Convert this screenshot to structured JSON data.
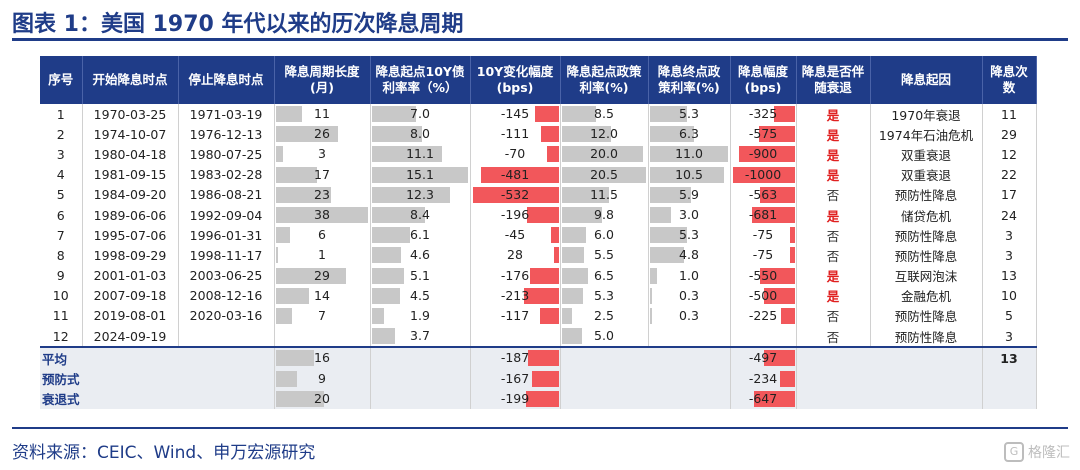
{
  "title": "图表 1：美国 1970 年代以来的历次降息周期",
  "headers": [
    "序号",
    "开始降息时点",
    "停止降息时点",
    "降息周期长度\n(月)",
    "降息起点10Y债\n利率率（%）",
    "10Y变化幅度\n(bps)",
    "降息起点政策\n利率(%)",
    "降息终点政\n策利率(%)",
    "降息幅度\n(bps)",
    "降息是否伴\n随衰退",
    "降息起因",
    "降息次数"
  ],
  "rows": [
    {
      "no": "1",
      "start": "1970-03-25",
      "end": "1971-03-19",
      "len": "11",
      "len_v": 11,
      "y10": "7.0",
      "y10_v": 7.0,
      "chg": "-145",
      "chg_v": 145,
      "ps": "8.5",
      "ps_v": 8.5,
      "pe": "5.3",
      "pe_v": 5.3,
      "cut": "-325",
      "cut_v": 325,
      "rec": "是",
      "recession": true,
      "cause": "1970年衰退",
      "cnt": "11"
    },
    {
      "no": "2",
      "start": "1974-10-07",
      "end": "1976-12-13",
      "len": "26",
      "len_v": 26,
      "y10": "8.0",
      "y10_v": 8.0,
      "chg": "-111",
      "chg_v": 111,
      "ps": "12.0",
      "ps_v": 12.0,
      "pe": "6.3",
      "pe_v": 6.3,
      "cut": "-575",
      "cut_v": 575,
      "rec": "是",
      "recession": true,
      "cause": "1974年石油危机",
      "cnt": "29"
    },
    {
      "no": "3",
      "start": "1980-04-18",
      "end": "1980-07-25",
      "len": "3",
      "len_v": 3,
      "y10": "11.1",
      "y10_v": 11.1,
      "chg": "-70",
      "chg_v": 70,
      "ps": "20.0",
      "ps_v": 20.0,
      "pe": "11.0",
      "pe_v": 11.0,
      "cut": "-900",
      "cut_v": 900,
      "rec": "是",
      "recession": true,
      "cause": "双重衰退",
      "cnt": "12"
    },
    {
      "no": "4",
      "start": "1981-09-15",
      "end": "1983-02-28",
      "len": "17",
      "len_v": 17,
      "y10": "15.1",
      "y10_v": 15.1,
      "chg": "-481",
      "chg_v": 481,
      "ps": "20.5",
      "ps_v": 20.5,
      "pe": "10.5",
      "pe_v": 10.5,
      "cut": "-1000",
      "cut_v": 1000,
      "rec": "是",
      "recession": true,
      "cause": "双重衰退",
      "cnt": "22"
    },
    {
      "no": "5",
      "start": "1984-09-20",
      "end": "1986-08-21",
      "len": "23",
      "len_v": 23,
      "y10": "12.3",
      "y10_v": 12.3,
      "chg": "-532",
      "chg_v": 532,
      "ps": "11.5",
      "ps_v": 11.5,
      "pe": "5.9",
      "pe_v": 5.9,
      "cut": "-563",
      "cut_v": 563,
      "rec": "否",
      "recession": false,
      "cause": "预防性降息",
      "cnt": "17"
    },
    {
      "no": "6",
      "start": "1989-06-06",
      "end": "1992-09-04",
      "len": "38",
      "len_v": 38,
      "y10": "8.4",
      "y10_v": 8.4,
      "chg": "-196",
      "chg_v": 196,
      "ps": "9.8",
      "ps_v": 9.8,
      "pe": "3.0",
      "pe_v": 3.0,
      "cut": "-681",
      "cut_v": 681,
      "rec": "是",
      "recession": true,
      "cause": "储贷危机",
      "cnt": "24"
    },
    {
      "no": "7",
      "start": "1995-07-06",
      "end": "1996-01-31",
      "len": "6",
      "len_v": 6,
      "y10": "6.1",
      "y10_v": 6.1,
      "chg": "-45",
      "chg_v": 45,
      "ps": "6.0",
      "ps_v": 6.0,
      "pe": "5.3",
      "pe_v": 5.3,
      "cut": "-75",
      "cut_v": 75,
      "rec": "否",
      "recession": false,
      "cause": "预防性降息",
      "cnt": "3"
    },
    {
      "no": "8",
      "start": "1998-09-29",
      "end": "1998-11-17",
      "len": "1",
      "len_v": 1,
      "y10": "4.6",
      "y10_v": 4.6,
      "chg": "28",
      "chg_v": 28,
      "ps": "5.5",
      "ps_v": 5.5,
      "pe": "4.8",
      "pe_v": 4.8,
      "cut": "-75",
      "cut_v": 75,
      "rec": "否",
      "recession": false,
      "cause": "预防性降息",
      "cnt": "3"
    },
    {
      "no": "9",
      "start": "2001-01-03",
      "end": "2003-06-25",
      "len": "29",
      "len_v": 29,
      "y10": "5.1",
      "y10_v": 5.1,
      "chg": "-176",
      "chg_v": 176,
      "ps": "6.5",
      "ps_v": 6.5,
      "pe": "1.0",
      "pe_v": 1.0,
      "cut": "-550",
      "cut_v": 550,
      "rec": "是",
      "recession": true,
      "cause": "互联网泡沫",
      "cnt": "13"
    },
    {
      "no": "10",
      "start": "2007-09-18",
      "end": "2008-12-16",
      "len": "14",
      "len_v": 14,
      "y10": "4.5",
      "y10_v": 4.5,
      "chg": "-213",
      "chg_v": 213,
      "ps": "5.3",
      "ps_v": 5.3,
      "pe": "0.3",
      "pe_v": 0.3,
      "cut": "-500",
      "cut_v": 500,
      "rec": "是",
      "recession": true,
      "cause": "金融危机",
      "cnt": "10"
    },
    {
      "no": "11",
      "start": "2019-08-01",
      "end": "2020-03-16",
      "len": "7",
      "len_v": 7,
      "y10": "1.9",
      "y10_v": 1.9,
      "chg": "-117",
      "chg_v": 117,
      "ps": "2.5",
      "ps_v": 2.5,
      "pe": "0.3",
      "pe_v": 0.3,
      "cut": "-225",
      "cut_v": 225,
      "rec": "否",
      "recession": false,
      "cause": "预防性降息",
      "cnt": "5"
    },
    {
      "no": "12",
      "start": "2024-09-19",
      "end": "",
      "len": "",
      "len_v": 0,
      "y10": "3.7",
      "y10_v": 3.7,
      "chg": "",
      "chg_v": 0,
      "ps": "5.0",
      "ps_v": 5.0,
      "pe": "",
      "pe_v": 0,
      "cut": "",
      "cut_v": 0,
      "rec": "否",
      "recession": false,
      "cause": "预防性降息",
      "cnt": "3"
    }
  ],
  "summary": [
    {
      "label": "平均",
      "len": "16",
      "len_v": 16,
      "chg": "-187",
      "chg_v": 187,
      "cut": "-497",
      "cut_v": 497,
      "cnt": "13"
    },
    {
      "label": "预防式",
      "len": "9",
      "len_v": 9,
      "chg": "-167",
      "chg_v": 167,
      "cut": "-234",
      "cut_v": 234,
      "cnt": ""
    },
    {
      "label": "衰退式",
      "len": "20",
      "len_v": 20,
      "chg": "-199",
      "chg_v": 199,
      "cut": "-647",
      "cut_v": 647,
      "cnt": ""
    }
  ],
  "scale": {
    "len": 38,
    "y10": 15.1,
    "chg": 532,
    "ps": 20.5,
    "pe": 11.0,
    "cut": 1000
  },
  "source": "资料来源：CEIC、Wind、申万宏源研究",
  "logo": "格隆汇",
  "colors": {
    "accent": "#1f3c88",
    "bar_gray": "#c8c8c8",
    "bar_red": "#f2575b",
    "yes_red": "#e02020"
  }
}
